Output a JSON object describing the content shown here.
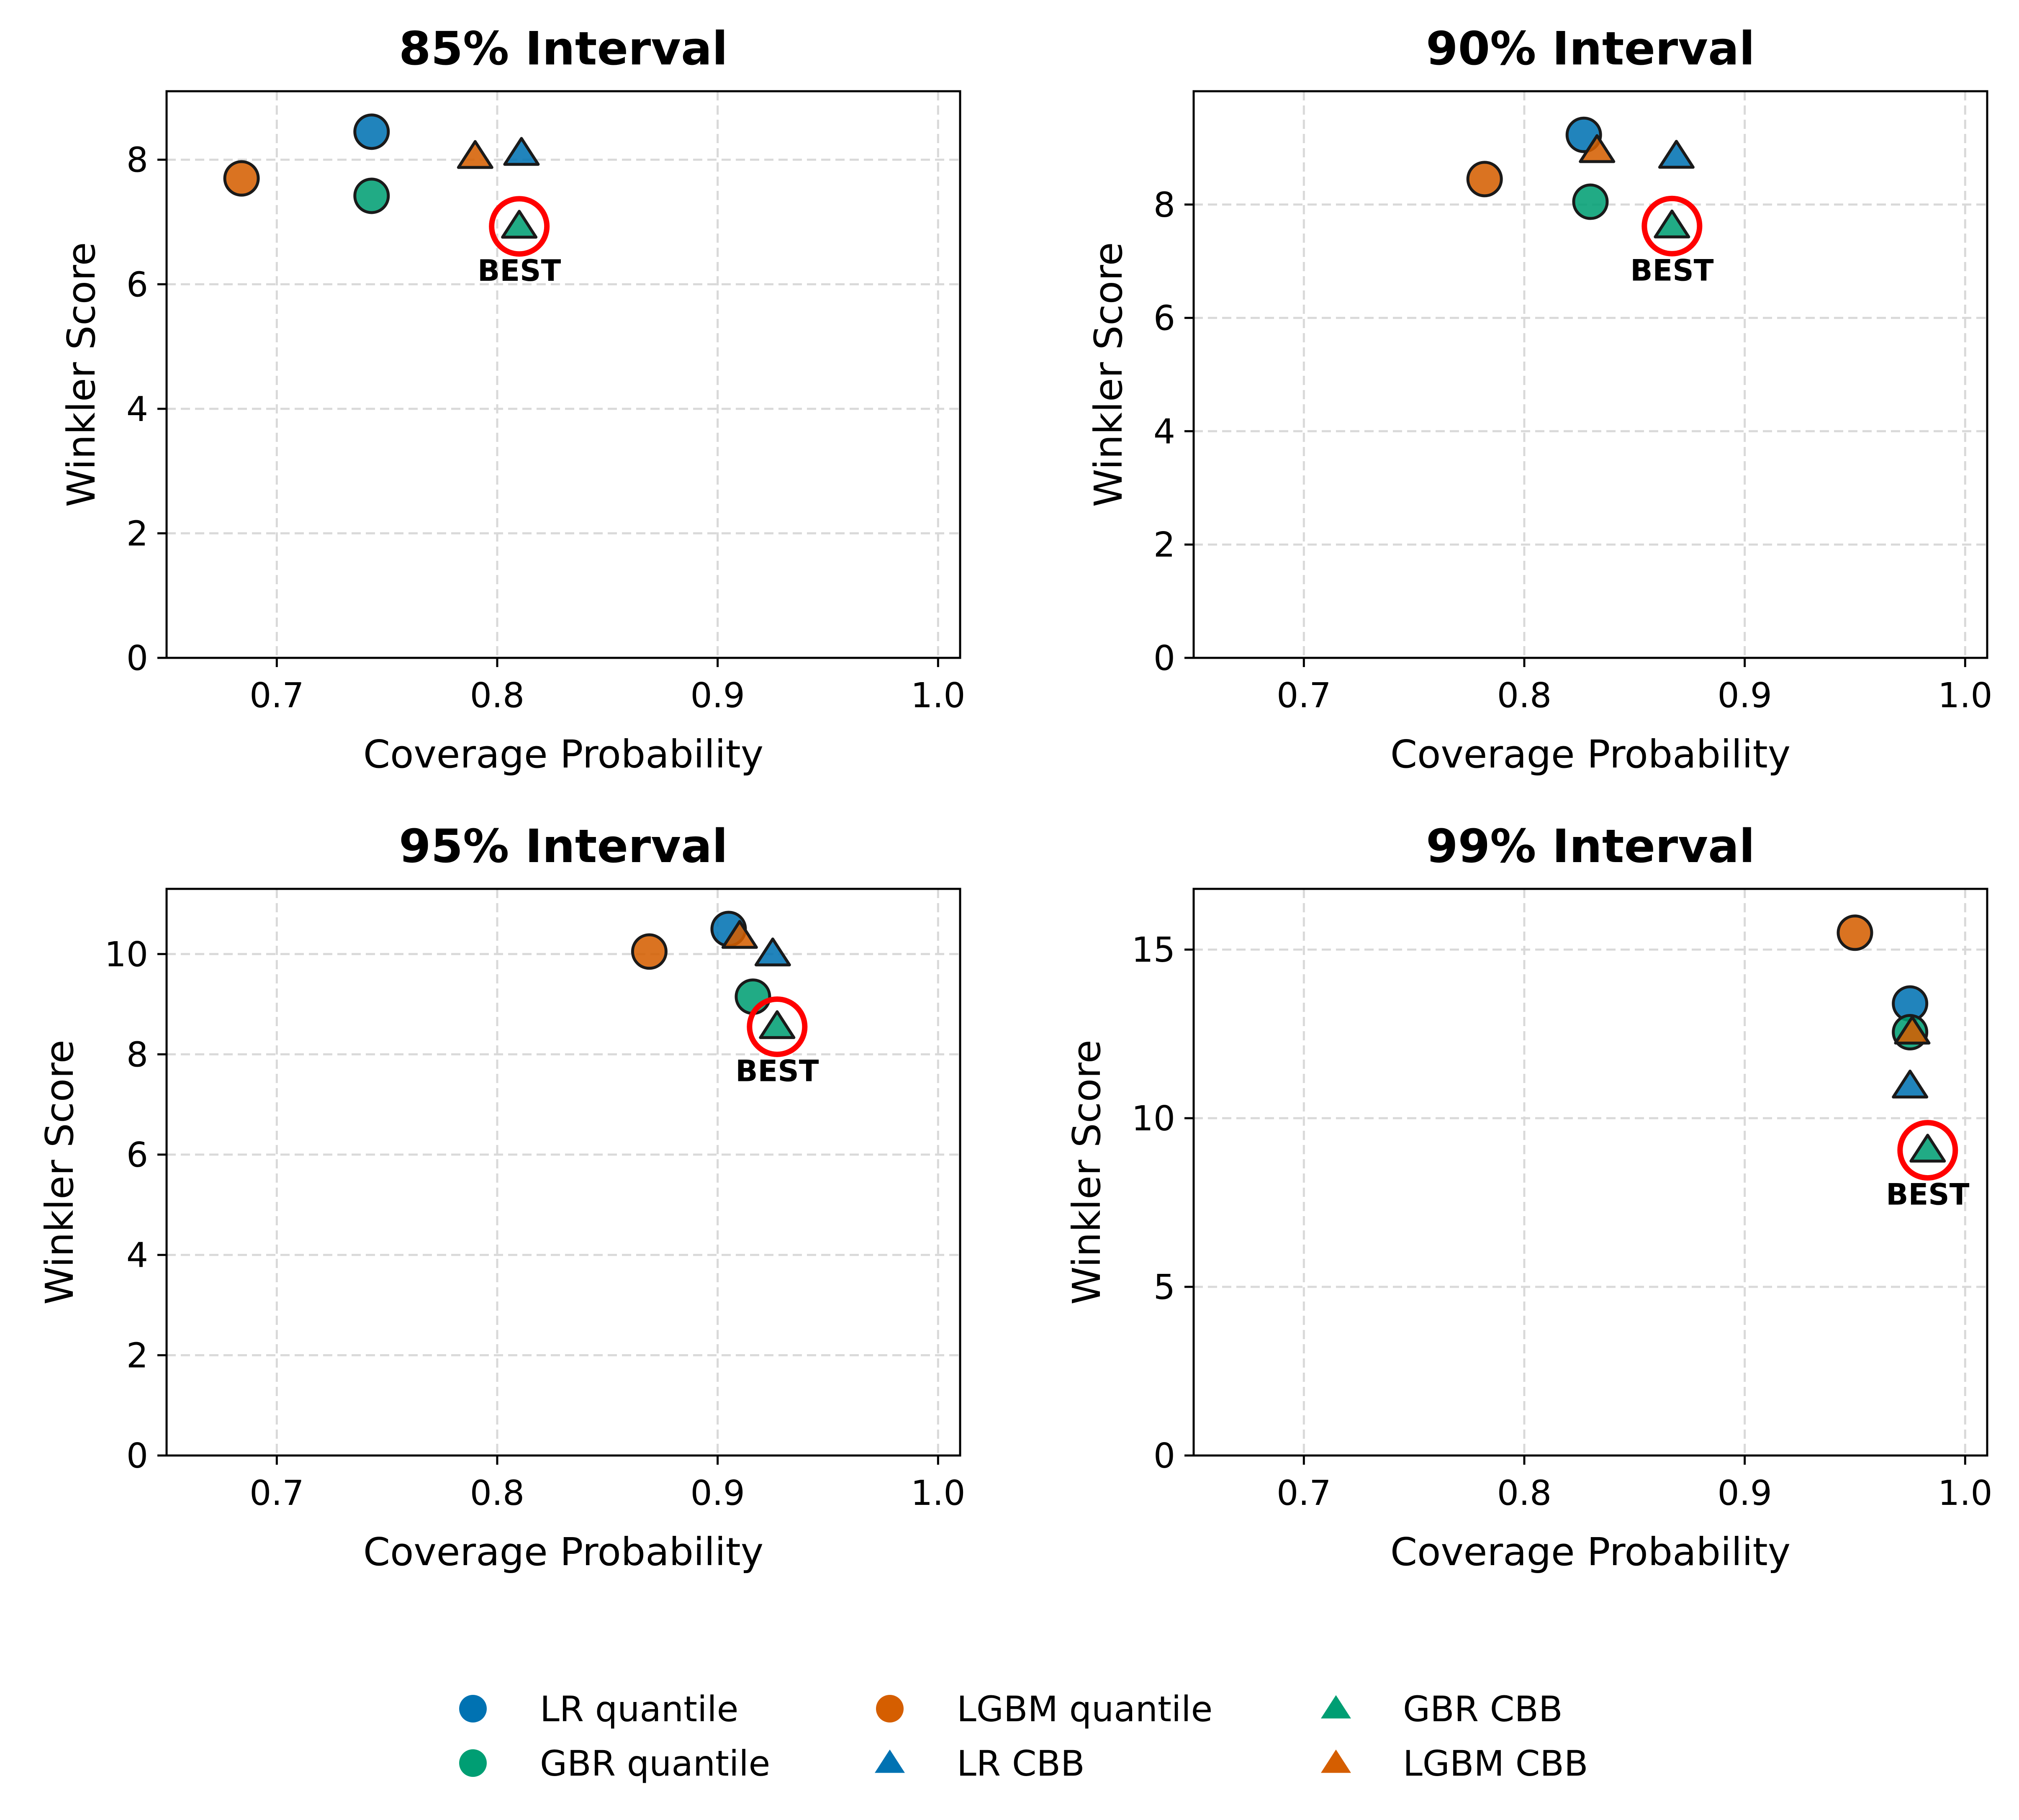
{
  "chart_data": {
    "type": "scatter",
    "xlabel": "Coverage Probability",
    "ylabel": "Winkler Score",
    "xlim": [
      0.65,
      1.01
    ],
    "x_ticks": [
      "0.7",
      "0.8",
      "0.9",
      "1.0"
    ],
    "x_tick_values": [
      0.7,
      0.8,
      0.9,
      1.0
    ],
    "grid": true,
    "legend_placement": "bottom-center",
    "best_label": "BEST",
    "series_styles": [
      {
        "name": "LR quantile",
        "marker": "circle",
        "color": "#0072B2"
      },
      {
        "name": "GBR quantile",
        "marker": "circle",
        "color": "#009E73"
      },
      {
        "name": "LGBM quantile",
        "marker": "circle",
        "color": "#D55E00"
      },
      {
        "name": "LR CBB",
        "marker": "triangle",
        "color": "#0072B2"
      },
      {
        "name": "GBR CBB",
        "marker": "triangle",
        "color": "#009E73"
      },
      {
        "name": "LGBM CBB",
        "marker": "triangle",
        "color": "#D55E00"
      }
    ],
    "panels": [
      {
        "title": "85% Interval",
        "ylim": [
          0,
          9.1
        ],
        "y_ticks": [
          "0",
          "2",
          "4",
          "6",
          "8"
        ],
        "y_tick_values": [
          0,
          2,
          4,
          6,
          8
        ],
        "best_series": "GBR CBB",
        "points": [
          {
            "series": "LR quantile",
            "x": 0.743,
            "y": 8.45
          },
          {
            "series": "GBR quantile",
            "x": 0.743,
            "y": 7.42
          },
          {
            "series": "LGBM quantile",
            "x": 0.684,
            "y": 7.7
          },
          {
            "series": "LR CBB",
            "x": 0.811,
            "y": 8.1
          },
          {
            "series": "GBR CBB",
            "x": 0.81,
            "y": 6.93
          },
          {
            "series": "LGBM CBB",
            "x": 0.79,
            "y": 8.05
          }
        ]
      },
      {
        "title": "90% Interval",
        "ylim": [
          0,
          10.0
        ],
        "y_ticks": [
          "0",
          "2",
          "4",
          "6",
          "8"
        ],
        "y_tick_values": [
          0,
          2,
          4,
          6,
          8
        ],
        "best_series": "GBR CBB",
        "points": [
          {
            "series": "LR quantile",
            "x": 0.827,
            "y": 9.23
          },
          {
            "series": "GBR quantile",
            "x": 0.83,
            "y": 8.05
          },
          {
            "series": "LGBM quantile",
            "x": 0.782,
            "y": 8.45
          },
          {
            "series": "LR CBB",
            "x": 0.869,
            "y": 8.85
          },
          {
            "series": "GBR CBB",
            "x": 0.867,
            "y": 7.62
          },
          {
            "series": "LGBM CBB",
            "x": 0.833,
            "y": 8.95
          }
        ]
      },
      {
        "title": "95% Interval",
        "ylim": [
          0,
          11.3
        ],
        "y_ticks": [
          "0",
          "2",
          "4",
          "6",
          "8",
          "10"
        ],
        "y_tick_values": [
          0,
          2,
          4,
          6,
          8,
          10
        ],
        "best_series": "GBR CBB",
        "points": [
          {
            "series": "LR quantile",
            "x": 0.905,
            "y": 10.5
          },
          {
            "series": "GBR quantile",
            "x": 0.916,
            "y": 9.15
          },
          {
            "series": "LGBM quantile",
            "x": 0.869,
            "y": 10.05
          },
          {
            "series": "LR CBB",
            "x": 0.925,
            "y": 10.0
          },
          {
            "series": "GBR CBB",
            "x": 0.927,
            "y": 8.55
          },
          {
            "series": "LGBM CBB",
            "x": 0.91,
            "y": 10.35
          }
        ]
      },
      {
        "title": "99% Interval",
        "ylim": [
          0,
          16.8
        ],
        "y_ticks": [
          "0",
          "5",
          "10",
          "15"
        ],
        "y_tick_values": [
          0,
          5,
          10,
          15
        ],
        "best_series": "GBR CBB",
        "points": [
          {
            "series": "LR quantile",
            "x": 0.975,
            "y": 13.4
          },
          {
            "series": "GBR quantile",
            "x": 0.975,
            "y": 12.55
          },
          {
            "series": "LGBM quantile",
            "x": 0.95,
            "y": 15.5
          },
          {
            "series": "LR CBB",
            "x": 0.975,
            "y": 10.95
          },
          {
            "series": "GBR CBB",
            "x": 0.983,
            "y": 9.05
          },
          {
            "series": "LGBM CBB",
            "x": 0.976,
            "y": 12.55
          }
        ]
      }
    ]
  }
}
